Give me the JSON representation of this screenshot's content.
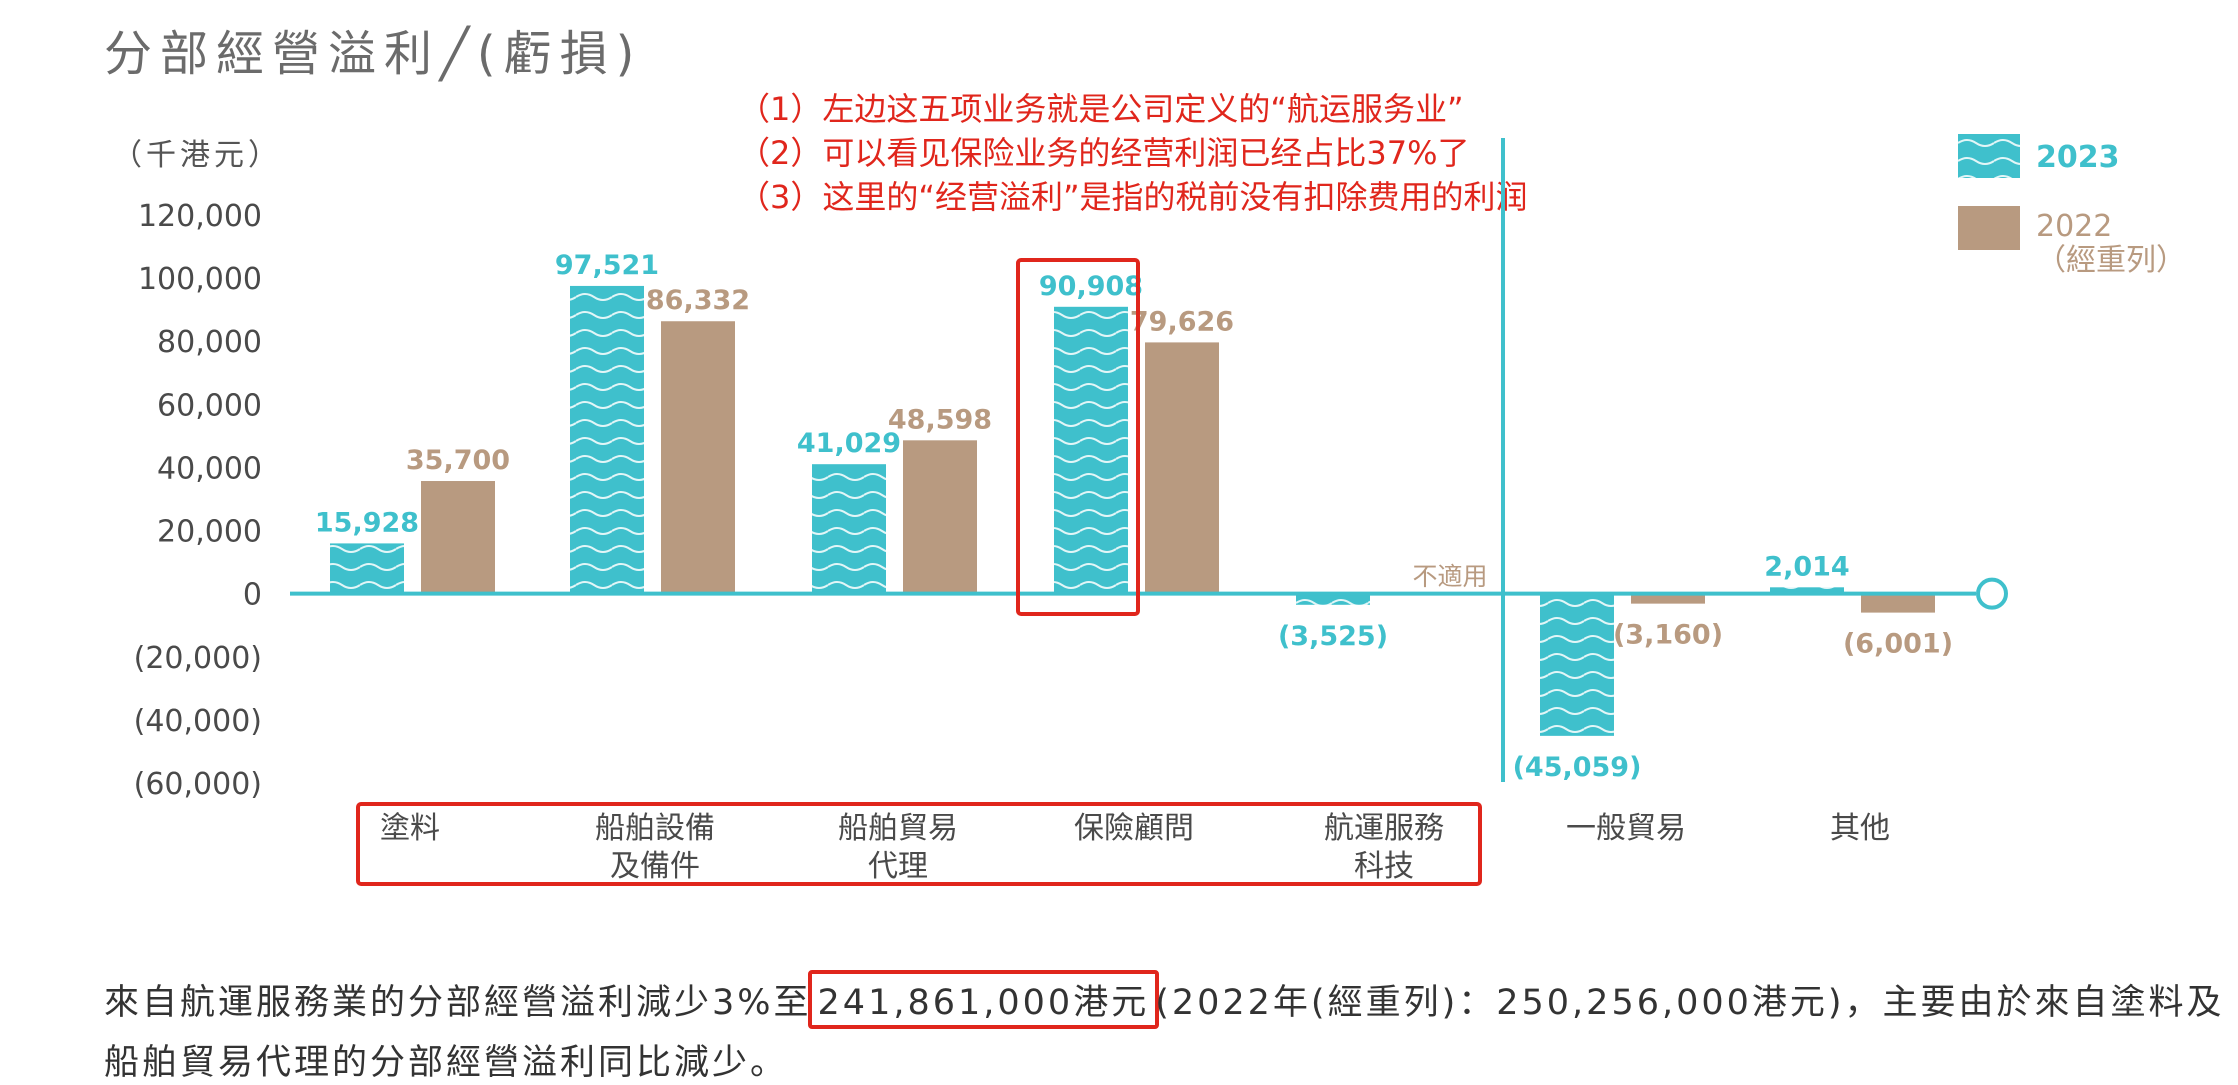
{
  "title": "分部經營溢利╱(虧損)",
  "unit_label": "（千港元）",
  "annotations": [
    "（1）左边这五项业务就是公司定义的“航运服务业”",
    "（2）可以看见保险业务的经营利润已经占比37%了",
    "（3）这里的“经营溢利”是指的税前没有扣除费用的利润"
  ],
  "colors": {
    "series_2023": "#3fc0cc",
    "series_2022": "#b89a80",
    "highlight": "#e0261c"
  },
  "legend": {
    "item_2023": "2023",
    "item_2022_line1": "2022",
    "item_2022_line2": "（經重列）",
    "position": "top-right"
  },
  "na_label": "不適用",
  "chart_data": {
    "type": "bar",
    "ylim": [
      -60000,
      120000
    ],
    "yticks": [
      "120,000",
      "100,000",
      "80,000",
      "60,000",
      "40,000",
      "20,000",
      "0",
      "(20,000)",
      "(40,000)",
      "(60,000)"
    ],
    "categories": [
      {
        "line1": "塗料",
        "line2": ""
      },
      {
        "line1": "船舶設備",
        "line2": "及備件"
      },
      {
        "line1": "船舶貿易",
        "line2": "代理"
      },
      {
        "line1": "保險顧問",
        "line2": ""
      },
      {
        "line1": "航運服務",
        "line2": "科技"
      },
      {
        "line1": "一般貿易",
        "line2": ""
      },
      {
        "line1": "其他",
        "line2": ""
      }
    ],
    "series": [
      {
        "name": "2023",
        "values": [
          15928,
          97521,
          41029,
          90908,
          -3525,
          -45059,
          2014
        ],
        "labels": [
          "15,928",
          "97,521",
          "41,029",
          "90,908",
          "(3,525)",
          "(45,059)",
          "2,014"
        ]
      },
      {
        "name": "2022（經重列）",
        "values": [
          35700,
          86332,
          48598,
          79626,
          null,
          -3160,
          -6001
        ],
        "labels": [
          "35,700",
          "86,332",
          "48,598",
          "79,626",
          "",
          "(3,160)",
          "(6,001)"
        ]
      }
    ]
  },
  "footer": {
    "line1_before": "來自航運服務業的分部經營溢利減少3%至",
    "line1_highlight": "241,861,000港元",
    "line1_after": "(2022年(經重列)：250,256,000港元)，主要由於來自塗料及",
    "line2": "船舶貿易代理的分部經營溢利同比減少。"
  }
}
